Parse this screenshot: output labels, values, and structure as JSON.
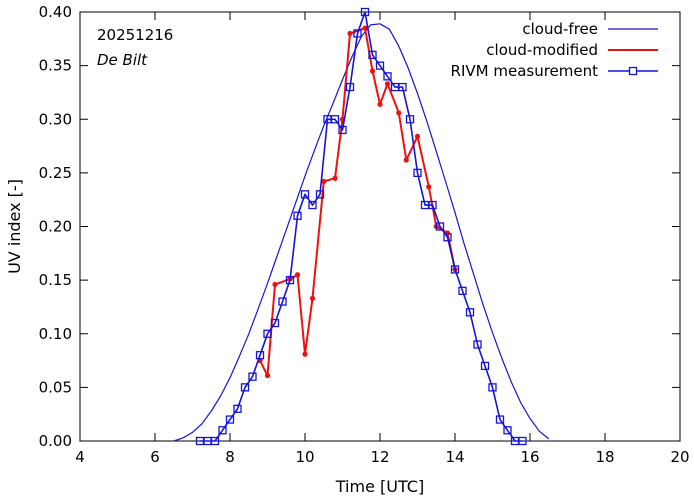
{
  "chart_data": {
    "type": "line",
    "xlabel": "Time  [UTC]",
    "ylabel": "UV index  [-]",
    "xlim": [
      4,
      20
    ],
    "ylim": [
      0,
      0.4
    ],
    "xticks": [
      4,
      6,
      8,
      10,
      12,
      14,
      16,
      18,
      20
    ],
    "xtick_labels": [
      "4",
      "6",
      "8",
      "10",
      "12",
      "14",
      "16",
      "18",
      "20"
    ],
    "yticks": [
      0,
      0.05,
      0.1,
      0.15,
      0.2,
      0.25,
      0.3,
      0.35,
      0.4
    ],
    "ytick_labels": [
      "0.00",
      "0.05",
      "0.10",
      "0.15",
      "0.20",
      "0.25",
      "0.30",
      "0.35",
      "0.40"
    ],
    "grid": false,
    "legend_position": "top-right",
    "annotations": [
      {
        "text": "20251216",
        "style": "normal"
      },
      {
        "text": "De Bilt",
        "style": "italic"
      }
    ],
    "series": [
      {
        "name": "cloud-free",
        "color": "#1414d8",
        "marker": "none",
        "x": [
          6.5,
          6.75,
          7.0,
          7.25,
          7.5,
          7.75,
          8.0,
          8.25,
          8.5,
          8.75,
          9.0,
          9.25,
          9.5,
          9.75,
          10.0,
          10.25,
          10.5,
          10.75,
          11.0,
          11.25,
          11.5,
          11.75,
          12.0,
          12.25,
          12.5,
          12.75,
          13.0,
          13.25,
          13.5,
          13.75,
          14.0,
          14.25,
          14.5,
          14.75,
          15.0,
          15.25,
          15.5,
          15.75,
          16.0,
          16.25,
          16.5
        ],
        "y": [
          0.0,
          0.003,
          0.008,
          0.016,
          0.028,
          0.042,
          0.059,
          0.079,
          0.1,
          0.123,
          0.147,
          0.172,
          0.197,
          0.222,
          0.247,
          0.271,
          0.294,
          0.315,
          0.337,
          0.358,
          0.377,
          0.388,
          0.389,
          0.384,
          0.368,
          0.348,
          0.324,
          0.298,
          0.27,
          0.242,
          0.213,
          0.183,
          0.155,
          0.127,
          0.101,
          0.077,
          0.055,
          0.036,
          0.021,
          0.009,
          0.002
        ]
      },
      {
        "name": "cloud-modified",
        "color": "#ee1111",
        "marker": "dot",
        "x": [
          8.8,
          9.0,
          9.2,
          9.6,
          9.8,
          10.0,
          10.2,
          10.5,
          10.8,
          11.0,
          11.2,
          11.6,
          11.8,
          12.0,
          12.2,
          12.5,
          12.7,
          13.0,
          13.3,
          13.5,
          13.8,
          14.0
        ],
        "y": [
          0.075,
          0.061,
          0.146,
          0.151,
          0.155,
          0.081,
          0.133,
          0.242,
          0.245,
          0.3,
          0.38,
          0.385,
          0.345,
          0.314,
          0.333,
          0.306,
          0.262,
          0.284,
          0.237,
          0.2,
          0.194,
          0.16
        ]
      },
      {
        "name": "RIVM measurement",
        "color": "#1414d8",
        "marker": "square",
        "x": [
          7.2,
          7.4,
          7.6,
          7.8,
          8.0,
          8.2,
          8.4,
          8.6,
          8.8,
          9.0,
          9.2,
          9.4,
          9.6,
          9.8,
          10.0,
          10.2,
          10.4,
          10.6,
          10.8,
          11.0,
          11.2,
          11.4,
          11.6,
          11.8,
          12.0,
          12.2,
          12.4,
          12.6,
          12.8,
          13.0,
          13.2,
          13.4,
          13.6,
          13.8,
          14.0,
          14.2,
          14.4,
          14.6,
          14.8,
          15.0,
          15.2,
          15.4,
          15.6,
          15.8
        ],
        "y": [
          0.0,
          0.0,
          0.0,
          0.01,
          0.02,
          0.03,
          0.05,
          0.06,
          0.08,
          0.1,
          0.11,
          0.13,
          0.15,
          0.21,
          0.23,
          0.22,
          0.23,
          0.3,
          0.3,
          0.29,
          0.33,
          0.38,
          0.4,
          0.36,
          0.35,
          0.34,
          0.33,
          0.33,
          0.3,
          0.25,
          0.22,
          0.22,
          0.2,
          0.19,
          0.16,
          0.14,
          0.12,
          0.09,
          0.07,
          0.05,
          0.02,
          0.01,
          0.0,
          0.0
        ]
      }
    ]
  }
}
